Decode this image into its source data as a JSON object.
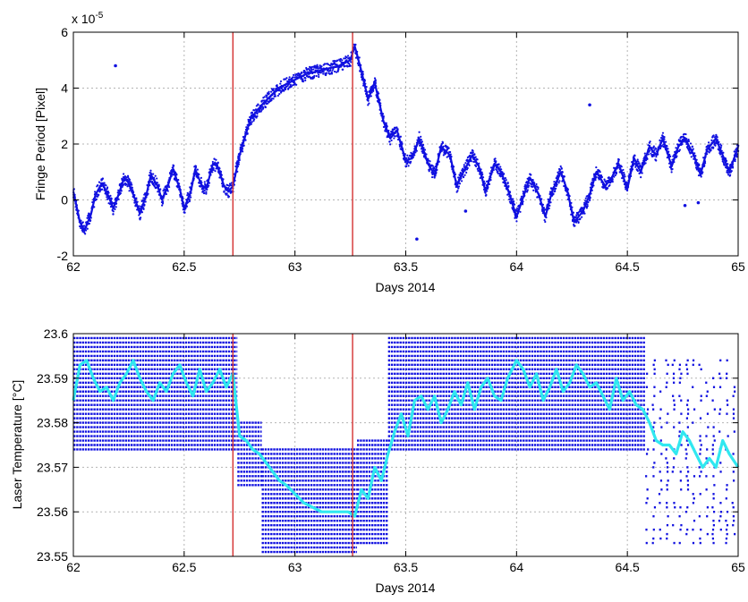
{
  "chart_data": [
    {
      "type": "scatter",
      "title": "",
      "xlabel": "Days 2014",
      "ylabel": "Fringe Period [Pixel]",
      "y_multiplier_label": "x 10",
      "y_multiplier_exponent": "-5",
      "xlim": [
        62,
        65
      ],
      "ylim": [
        -2,
        6
      ],
      "x_ticks": [
        62,
        62.5,
        63,
        63.5,
        64,
        64.5,
        65
      ],
      "x_tick_labels": [
        "62",
        "62.5",
        "63",
        "63.5",
        "64",
        "64.5",
        "65"
      ],
      "y_ticks": [
        -2,
        0,
        2,
        4,
        6
      ],
      "y_tick_labels": [
        "-2",
        "0",
        "2",
        "4",
        "6"
      ],
      "grid": true,
      "vlines": [
        62.72,
        63.26
      ],
      "colors": {
        "points": "#1010e0",
        "vline": "#d43030"
      },
      "series": [
        {
          "x": [
            62.0,
            62.03,
            62.05,
            62.08,
            62.1,
            62.13,
            62.15,
            62.18,
            62.2,
            62.23,
            62.25,
            62.28,
            62.3,
            62.33,
            62.35,
            62.38,
            62.4,
            62.43,
            62.45,
            62.48,
            62.5,
            62.53,
            62.55,
            62.58,
            62.6,
            62.63,
            62.65,
            62.68,
            62.7,
            62.72,
            62.75,
            62.78,
            62.8,
            62.85,
            62.9,
            62.95,
            63.0,
            63.05,
            63.1,
            63.15,
            63.2,
            63.25,
            63.27,
            63.3,
            63.33,
            63.36,
            63.4,
            63.43,
            63.46,
            63.5,
            63.53,
            63.56,
            63.6,
            63.63,
            63.66,
            63.7,
            63.73,
            63.76,
            63.8,
            63.83,
            63.86,
            63.9,
            63.93,
            63.96,
            64.0,
            64.03,
            64.06,
            64.1,
            64.13,
            64.16,
            64.2,
            64.23,
            64.26,
            64.3,
            64.33,
            64.36,
            64.4,
            64.43,
            64.46,
            64.5,
            64.53,
            64.56,
            64.6,
            64.63,
            64.66,
            64.7,
            64.73,
            64.76,
            64.8,
            64.83,
            64.86,
            64.9,
            64.93,
            64.96,
            65.0
          ],
          "y": [
            0.3,
            -0.8,
            -1.1,
            -0.5,
            0.2,
            0.6,
            0.3,
            -0.3,
            0.1,
            0.8,
            0.6,
            0.0,
            -0.5,
            0.2,
            0.9,
            0.5,
            0.0,
            0.6,
            1.1,
            0.4,
            -0.3,
            0.3,
            1.1,
            0.5,
            0.4,
            1.3,
            1.2,
            0.5,
            0.3,
            0.5,
            1.6,
            2.4,
            2.9,
            3.4,
            3.8,
            4.1,
            4.3,
            4.5,
            4.6,
            4.7,
            4.8,
            5.0,
            5.5,
            4.6,
            3.6,
            4.2,
            2.8,
            2.2,
            2.5,
            1.4,
            1.5,
            2.2,
            1.3,
            0.9,
            1.9,
            1.6,
            0.5,
            1.0,
            1.6,
            1.2,
            0.3,
            1.3,
            1.0,
            0.4,
            -0.6,
            0.1,
            0.8,
            0.2,
            -0.6,
            0.3,
            1.0,
            0.3,
            -0.8,
            -0.4,
            0.2,
            1.0,
            0.5,
            0.8,
            1.3,
            0.4,
            1.5,
            1.0,
            1.9,
            1.6,
            2.2,
            1.2,
            1.9,
            2.2,
            1.6,
            0.9,
            1.8,
            2.2,
            1.6,
            1.0,
            1.9
          ]
        },
        {
          "x": [
            62.19,
            63.55,
            64.33,
            63.77,
            64.76,
            64.82
          ],
          "y": [
            4.8,
            -1.4,
            3.4,
            -0.4,
            -0.2,
            -0.1
          ]
        }
      ]
    },
    {
      "type": "scatter",
      "title": "",
      "xlabel": "Days 2014",
      "ylabel": "Laser Temperature [°C]",
      "xlim": [
        62,
        65
      ],
      "ylim": [
        23.55,
        23.6
      ],
      "x_ticks": [
        62,
        62.5,
        63,
        63.5,
        64,
        64.5,
        65
      ],
      "x_tick_labels": [
        "62",
        "62.5",
        "63",
        "63.5",
        "64",
        "64.5",
        "65"
      ],
      "y_ticks": [
        23.55,
        23.56,
        23.57,
        23.58,
        23.59,
        23.6
      ],
      "y_tick_labels": [
        "23.55",
        "23.56",
        "23.57",
        "23.58",
        "23.59",
        "23.6"
      ],
      "grid": true,
      "vlines": [
        62.72,
        63.26
      ],
      "colors": {
        "raw": "#1010e0",
        "smoothed": "#30e8f0",
        "vline": "#d43030"
      },
      "quantization_step": 0.001,
      "raw_bands": [
        {
          "x_start": 62.0,
          "x_end": 62.74,
          "y_min": 23.574,
          "y_max": 23.599
        },
        {
          "x_start": 62.74,
          "x_end": 62.85,
          "y_min": 23.566,
          "y_max": 23.58
        },
        {
          "x_start": 62.85,
          "x_end": 63.28,
          "y_min": 23.551,
          "y_max": 23.574
        },
        {
          "x_start": 63.28,
          "x_end": 63.42,
          "y_min": 23.553,
          "y_max": 23.576
        },
        {
          "x_start": 63.42,
          "x_end": 64.58,
          "y_min": 23.574,
          "y_max": 23.599
        },
        {
          "x_start": 64.58,
          "x_end": 65.0,
          "y_min": 23.553,
          "y_max": 23.594
        }
      ],
      "series": [
        {
          "type": "line",
          "x": [
            62.0,
            62.03,
            62.06,
            62.09,
            62.12,
            62.15,
            62.18,
            62.21,
            62.24,
            62.27,
            62.3,
            62.33,
            62.36,
            62.39,
            62.42,
            62.45,
            62.48,
            62.51,
            62.54,
            62.57,
            62.6,
            62.63,
            62.66,
            62.69,
            62.72,
            62.75,
            62.78,
            62.81,
            62.84,
            62.87,
            62.9,
            62.93,
            62.96,
            63.0,
            63.04,
            63.08,
            63.12,
            63.16,
            63.2,
            63.24,
            63.27,
            63.3,
            63.33,
            63.36,
            63.39,
            63.42,
            63.45,
            63.48,
            63.51,
            63.54,
            63.57,
            63.6,
            63.63,
            63.66,
            63.69,
            63.72,
            63.75,
            63.78,
            63.81,
            63.84,
            63.87,
            63.9,
            63.93,
            63.96,
            64.0,
            64.03,
            64.06,
            64.09,
            64.12,
            64.15,
            64.18,
            64.21,
            64.24,
            64.27,
            64.3,
            64.33,
            64.36,
            64.39,
            64.42,
            64.45,
            64.48,
            64.51,
            64.54,
            64.57,
            64.6,
            64.63,
            64.66,
            64.69,
            64.72,
            64.75,
            64.78,
            64.81,
            64.84,
            64.87,
            64.9,
            64.93,
            64.96,
            65.0
          ],
          "y": [
            23.585,
            23.593,
            23.594,
            23.59,
            23.587,
            23.588,
            23.585,
            23.589,
            23.591,
            23.594,
            23.59,
            23.587,
            23.585,
            23.589,
            23.587,
            23.591,
            23.593,
            23.589,
            23.586,
            23.592,
            23.587,
            23.589,
            23.592,
            23.588,
            23.591,
            23.577,
            23.576,
            23.574,
            23.573,
            23.571,
            23.569,
            23.567,
            23.566,
            23.564,
            23.562,
            23.561,
            23.56,
            23.56,
            23.56,
            23.56,
            23.559,
            23.565,
            23.563,
            23.57,
            23.567,
            23.573,
            23.578,
            23.582,
            23.577,
            23.585,
            23.586,
            23.583,
            23.586,
            23.58,
            23.583,
            23.587,
            23.584,
            23.589,
            23.583,
            23.588,
            23.59,
            23.586,
            23.585,
            23.59,
            23.594,
            23.592,
            23.588,
            23.591,
            23.585,
            23.588,
            23.592,
            23.587,
            23.589,
            23.593,
            23.591,
            23.588,
            23.589,
            23.586,
            23.583,
            23.59,
            23.585,
            23.587,
            23.584,
            23.583,
            23.58,
            23.576,
            23.575,
            23.575,
            23.573,
            23.578,
            23.576,
            23.573,
            23.57,
            23.572,
            23.57,
            23.576,
            23.573,
            23.57
          ]
        }
      ]
    }
  ]
}
